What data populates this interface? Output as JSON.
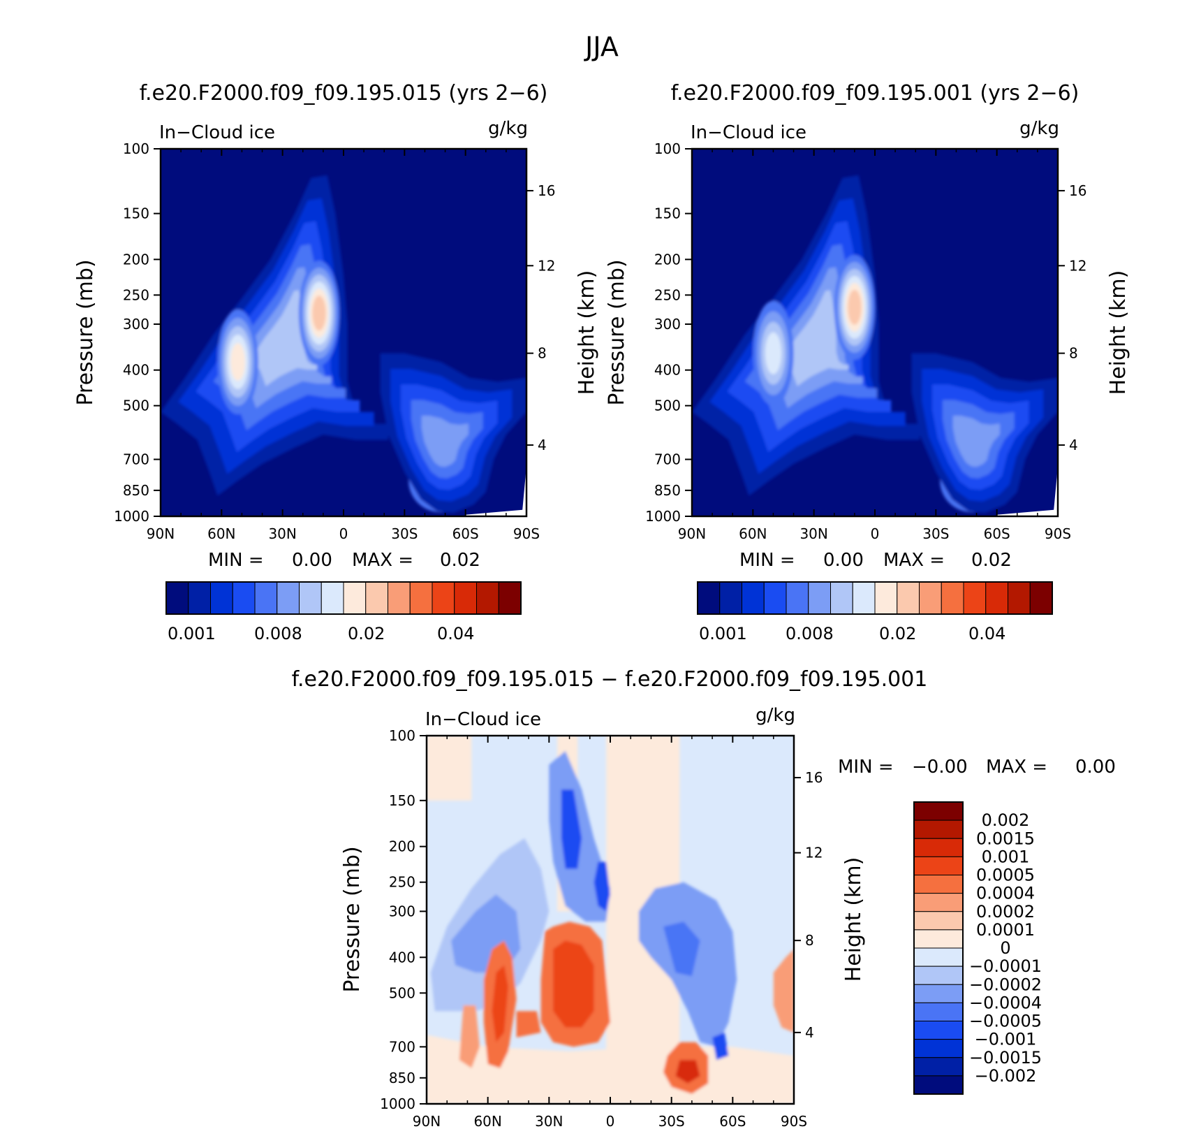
{
  "figure": {
    "title": "JJA"
  },
  "chart_data": [
    {
      "type": "heatmap",
      "panel": "top-left",
      "title": "f.e20.F2000.f09_f09.195.015 (yrs 2−6)",
      "variable": "In−Cloud ice",
      "units": "g/kg",
      "ylabel": "Pressure (mb)",
      "ylabel_right": "Height (km)",
      "x_ticks": [
        "90N",
        "60N",
        "30N",
        "0",
        "30S",
        "60S",
        "90S"
      ],
      "y_ticks": [
        "100",
        "150",
        "200",
        "250",
        "300",
        "400",
        "500",
        "700",
        "850",
        "1000"
      ],
      "y_right_ticks": [
        "16",
        "12",
        "8",
        "4"
      ],
      "stats": {
        "min_label": "MIN =",
        "min": "0.00",
        "max_label": "MAX =",
        "max": "0.02"
      },
      "colorbar_labels": [
        "0.001",
        "0.008",
        "0.02",
        "0.04"
      ],
      "features": [
        {
          "lat": 52,
          "p": 380,
          "level": 8
        },
        {
          "lat": 12,
          "p": 280,
          "level": 9
        },
        {
          "lat": -48,
          "p": 800,
          "level": 7
        }
      ]
    },
    {
      "type": "heatmap",
      "panel": "top-right",
      "title": "f.e20.F2000.f09_f09.195.001 (yrs 2−6)",
      "variable": "In−Cloud ice",
      "units": "g/kg",
      "ylabel": "Pressure (mb)",
      "ylabel_right": "Height (km)",
      "x_ticks": [
        "90N",
        "60N",
        "30N",
        "0",
        "30S",
        "60S",
        "90S"
      ],
      "y_ticks": [
        "100",
        "150",
        "200",
        "250",
        "300",
        "400",
        "500",
        "700",
        "850",
        "1000"
      ],
      "y_right_ticks": [
        "16",
        "12",
        "8",
        "4"
      ],
      "stats": {
        "min_label": "MIN =",
        "min": "0.00",
        "max_label": "MAX =",
        "max": "0.02"
      },
      "colorbar_labels": [
        "0.001",
        "0.008",
        "0.02",
        "0.04"
      ],
      "features": [
        {
          "lat": 50,
          "p": 360,
          "level": 7
        },
        {
          "lat": 10,
          "p": 270,
          "level": 9
        },
        {
          "lat": -48,
          "p": 800,
          "level": 7
        }
      ]
    },
    {
      "type": "heatmap",
      "panel": "bottom",
      "title": "f.e20.F2000.f09_f09.195.015 − f.e20.F2000.f09_f09.195.001",
      "variable": "In−Cloud ice",
      "units": "g/kg",
      "ylabel": "Pressure (mb)",
      "ylabel_right": "Height (km)",
      "x_ticks": [
        "90N",
        "60N",
        "30N",
        "0",
        "30S",
        "60S",
        "90S"
      ],
      "y_ticks": [
        "100",
        "150",
        "200",
        "250",
        "300",
        "400",
        "500",
        "700",
        "850",
        "1000"
      ],
      "y_right_ticks": [
        "16",
        "12",
        "8",
        "4"
      ],
      "stats": {
        "min_label": "MIN =",
        "min": "−0.00",
        "max_label": "MAX =",
        "max": "0.00"
      },
      "colorbar_labels": [
        "0.002",
        "0.0015",
        "0.001",
        "0.0005",
        "0.0004",
        "0.0002",
        "0.0001",
        "0",
        "−0.0001",
        "−0.0002",
        "−0.0004",
        "−0.0005",
        "−0.001",
        "−0.0015",
        "−0.002"
      ]
    }
  ],
  "colors": {
    "scale_top": [
      "#000c7d",
      "#0020a6",
      "#0033d6",
      "#1a4cf2",
      "#4a74f5",
      "#7c9df5",
      "#b0c6f7",
      "#dbe9fc",
      "#fdeadc",
      "#fbc9ae",
      "#f99d77",
      "#f5703f",
      "#ec4417",
      "#d82a07",
      "#b31800",
      "#7c0000"
    ],
    "scale_diff": [
      "#7c0000",
      "#b31800",
      "#d82a07",
      "#ec4417",
      "#f5703f",
      "#f99d77",
      "#fbc9ae",
      "#fdeadc",
      "#dbe9fc",
      "#b0c6f7",
      "#7c9df5",
      "#4a74f5",
      "#1a4cf2",
      "#0033d6",
      "#0020a6",
      "#000c7d"
    ]
  }
}
